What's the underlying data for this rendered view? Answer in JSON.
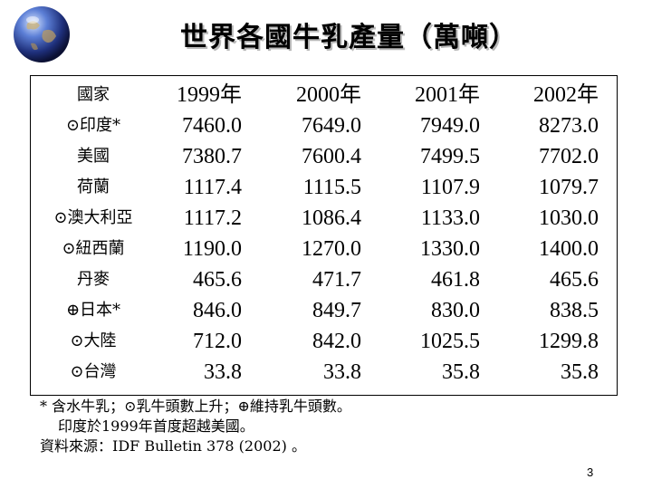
{
  "title": "世界各國牛乳產量（萬噸）",
  "table": {
    "headers": [
      "國家",
      "1999年",
      "2000年",
      "2001年",
      "2002年"
    ],
    "rows": [
      {
        "label": "⊙印度*",
        "values": [
          "7460.0",
          "7649.0",
          "7949.0",
          "8273.0"
        ]
      },
      {
        "label": "美國",
        "values": [
          "7380.7",
          "7600.4",
          "7499.5",
          "7702.0"
        ]
      },
      {
        "label": "荷蘭",
        "values": [
          "1117.4",
          "1115.5",
          "1107.9",
          "1079.7"
        ]
      },
      {
        "label": "⊙澳大利亞",
        "values": [
          "1117.2",
          "1086.4",
          "1133.0",
          "1030.0"
        ]
      },
      {
        "label": "⊙紐西蘭",
        "values": [
          "1190.0",
          "1270.0",
          "1330.0",
          "1400.0"
        ]
      },
      {
        "label": "丹麥",
        "values": [
          "465.6",
          "471.7",
          "461.8",
          "465.6"
        ]
      },
      {
        "label": "⊕日本*",
        "values": [
          "846.0",
          "849.7",
          "830.0",
          "838.5"
        ]
      },
      {
        "label": "⊙大陸",
        "values": [
          "712.0",
          "842.0",
          "1025.5",
          "1299.8"
        ]
      },
      {
        "label": "⊙台灣",
        "values": [
          "33.8",
          "33.8",
          "35.8",
          "35.8"
        ]
      }
    ]
  },
  "notes": {
    "line1": "* 含水牛乳；⊙乳牛頭數上升；⊕維持乳牛頭數。",
    "line2": "印度於1999年首度超越美國。",
    "line3": "資料來源：IDF Bulletin 378 (2002) 。"
  },
  "page_number": "3",
  "icons": {
    "logo": "globe-icon"
  },
  "colors": {
    "title_shadow": "#b9b9b9",
    "border": "#000000"
  }
}
